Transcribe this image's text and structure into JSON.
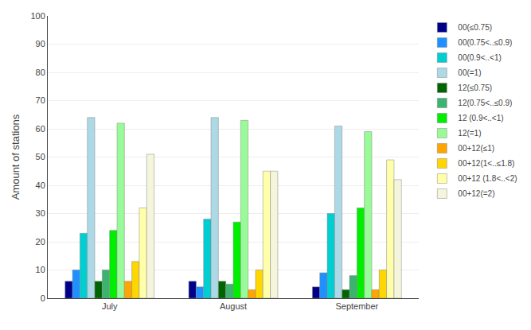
{
  "chart_data": {
    "type": "bar",
    "categories": [
      "July",
      "August",
      "September"
    ],
    "series": [
      {
        "name": "00(≤0.75)",
        "color": "#00008B",
        "values": [
          6,
          6,
          4
        ]
      },
      {
        "name": "00(0.75<..≤0.9)",
        "color": "#1E90FF",
        "values": [
          10,
          4,
          9
        ]
      },
      {
        "name": "00(0.9<..<1)",
        "color": "#00CED1",
        "values": [
          23,
          28,
          30
        ]
      },
      {
        "name": "00(=1)",
        "color": "#ADD8E6",
        "values": [
          64,
          64,
          61
        ]
      },
      {
        "name": "12(≤0.75)",
        "color": "#006400",
        "values": [
          6,
          6,
          3
        ]
      },
      {
        "name": "12(0.75<..≤0.9)",
        "color": "#3CB371",
        "values": [
          10,
          5,
          8
        ]
      },
      {
        "name": "12 (0.9<..<1)",
        "color": "#00EE00",
        "values": [
          24,
          27,
          32
        ]
      },
      {
        "name": "12(=1)",
        "color": "#98FB98",
        "values": [
          62,
          63,
          59
        ]
      },
      {
        "name": "00+12(≤1)",
        "color": "#FFA500",
        "values": [
          6,
          3,
          3
        ]
      },
      {
        "name": "00+12(1<..≤1.8)",
        "color": "#FFD700",
        "values": [
          13,
          10,
          10
        ]
      },
      {
        "name": "00+12 (1.8<..<2)",
        "color": "#FFFFAA",
        "values": [
          32,
          45,
          49
        ]
      },
      {
        "name": "00+12(=2)",
        "color": "#F5F5DC",
        "values": [
          51,
          45,
          42
        ]
      }
    ],
    "ylabel": "Amount of stations",
    "ylim": [
      0,
      100
    ],
    "yticks": [
      0,
      10,
      20,
      30,
      40,
      50,
      60,
      70,
      80,
      90,
      100
    ],
    "grid": true,
    "legend": "upper right"
  }
}
